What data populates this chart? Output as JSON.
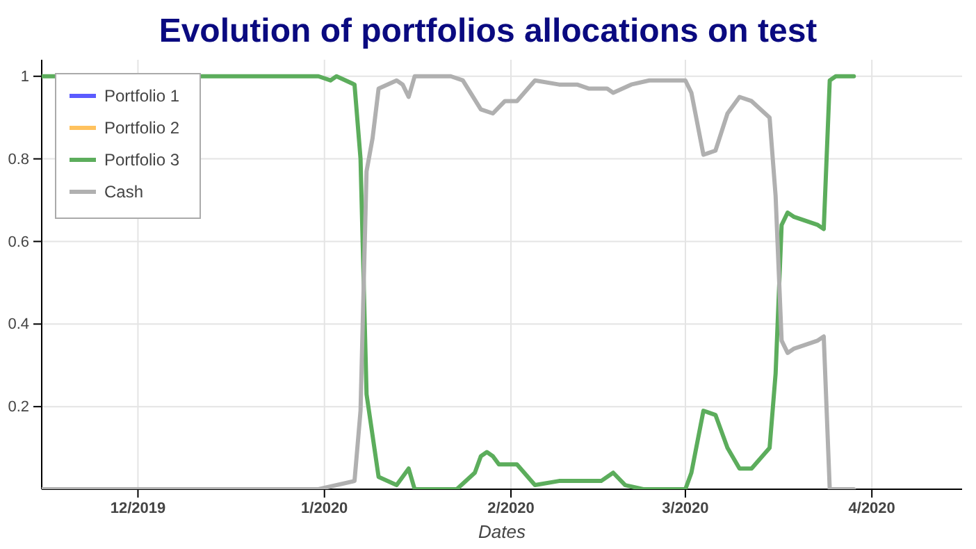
{
  "chart_data": {
    "type": "line",
    "title": "Evolution of portfolios allocations on test",
    "xlabel": "Dates",
    "xlim": [
      "2019-11-15",
      "2020-04-16"
    ],
    "ylim": [
      0,
      1.04
    ],
    "xticks": [
      {
        "value": "2019-12-01",
        "label": "12/2019"
      },
      {
        "value": "2020-01-01",
        "label": "1/2020"
      },
      {
        "value": "2020-02-01",
        "label": "2/2020"
      },
      {
        "value": "2020-03-01",
        "label": "3/2020"
      },
      {
        "value": "2020-04-01",
        "label": "4/2020"
      }
    ],
    "yticks": [
      0.2,
      0.4,
      0.6,
      0.8,
      1
    ],
    "grid": true,
    "legend": "top left",
    "series": [
      {
        "name": "Portfolio 1",
        "color": "#5b5bff"
      },
      {
        "name": "Portfolio 2",
        "color": "#ffc25e"
      },
      {
        "name": "Portfolio 3",
        "color": "#5cad5c",
        "x": [
          "2019-11-15",
          "2019-12-27",
          "2019-12-31",
          "2020-01-02",
          "2020-01-03",
          "2020-01-06",
          "2020-01-07",
          "2020-01-08",
          "2020-01-10",
          "2020-01-13",
          "2020-01-15",
          "2020-01-16",
          "2020-01-23",
          "2020-01-26",
          "2020-01-27",
          "2020-01-28",
          "2020-01-29",
          "2020-01-30",
          "2020-02-02",
          "2020-02-05",
          "2020-02-09",
          "2020-02-11",
          "2020-02-13",
          "2020-02-16",
          "2020-02-18",
          "2020-02-20",
          "2020-02-23",
          "2020-03-01",
          "2020-03-02",
          "2020-03-04",
          "2020-03-06",
          "2020-03-08",
          "2020-03-10",
          "2020-03-12",
          "2020-03-15",
          "2020-03-16",
          "2020-03-17",
          "2020-03-18",
          "2020-03-19",
          "2020-03-23",
          "2020-03-24",
          "2020-03-25",
          "2020-03-26",
          "2020-03-29"
        ],
        "values": [
          1,
          1,
          1,
          0.99,
          1,
          0.98,
          0.8,
          0.23,
          0.03,
          0.01,
          0.05,
          0,
          0,
          0.04,
          0.08,
          0.09,
          0.08,
          0.06,
          0.06,
          0.01,
          0.02,
          0.02,
          0.02,
          0.02,
          0.04,
          0.01,
          0,
          0,
          0.04,
          0.19,
          0.18,
          0.1,
          0.05,
          0.05,
          0.1,
          0.28,
          0.64,
          0.67,
          0.66,
          0.64,
          0.63,
          0.99,
          1,
          1
        ]
      },
      {
        "name": "Cash",
        "color": "#b0b0b0",
        "x": [
          "2019-11-15",
          "2019-12-31",
          "2020-01-06",
          "2020-01-07",
          "2020-01-08",
          "2020-01-09",
          "2020-01-10",
          "2020-01-13",
          "2020-01-14",
          "2020-01-15",
          "2020-01-16",
          "2020-01-17",
          "2020-01-22",
          "2020-01-24",
          "2020-01-27",
          "2020-01-29",
          "2020-01-31",
          "2020-02-02",
          "2020-02-05",
          "2020-02-09",
          "2020-02-12",
          "2020-02-14",
          "2020-02-17",
          "2020-02-18",
          "2020-02-21",
          "2020-02-24",
          "2020-02-27",
          "2020-03-01",
          "2020-03-02",
          "2020-03-04",
          "2020-03-06",
          "2020-03-08",
          "2020-03-10",
          "2020-03-12",
          "2020-03-15",
          "2020-03-16",
          "2020-03-17",
          "2020-03-18",
          "2020-03-19",
          "2020-03-23",
          "2020-03-24",
          "2020-03-25",
          "2020-03-29"
        ],
        "values": [
          0,
          0,
          0.02,
          0.19,
          0.77,
          0.85,
          0.97,
          0.99,
          0.98,
          0.95,
          1,
          1,
          1,
          0.99,
          0.92,
          0.91,
          0.94,
          0.94,
          0.99,
          0.98,
          0.98,
          0.97,
          0.97,
          0.96,
          0.98,
          0.99,
          0.99,
          0.99,
          0.96,
          0.81,
          0.82,
          0.91,
          0.95,
          0.94,
          0.9,
          0.71,
          0.36,
          0.33,
          0.34,
          0.36,
          0.37,
          0,
          0
        ]
      }
    ]
  }
}
